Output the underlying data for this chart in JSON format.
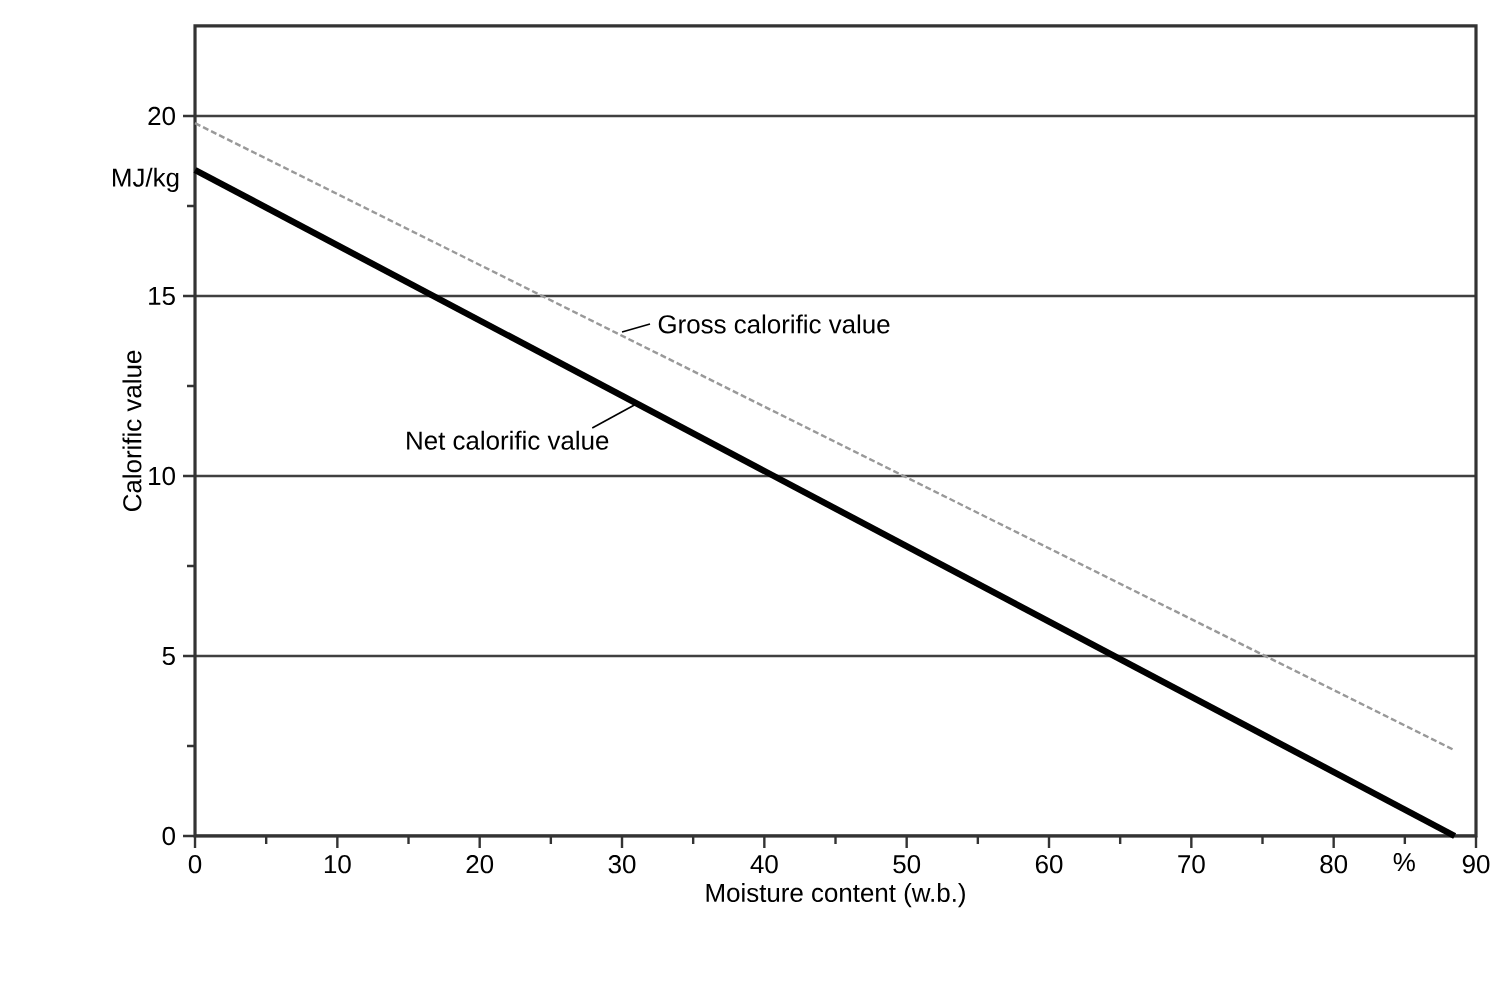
{
  "chart_data": {
    "type": "line",
    "xlabel": "Moisture content (w.b.)",
    "ylabel": "Calorific value",
    "series": [
      {
        "color": "#999999",
        "line_style": "dashed",
        "x": [
          0,
          88.4
        ],
        "values": [
          19.8,
          2.4
        ]
      },
      {
        "color": "#000000",
        "line_style": "solid",
        "x": [
          0,
          88.5
        ],
        "values": [
          18.5,
          0
        ]
      }
    ],
    "annotations": [
      {
        "text": "Gross calorific value",
        "x": 30,
        "y": 14
      },
      {
        "text": "Net calorific value",
        "x": 31,
        "y": 12
      },
      "MJ/kg",
      "%"
    ],
    "xlim": [
      0,
      90
    ],
    "ylim": [
      0,
      22.5
    ],
    "xticks": [
      0,
      10,
      20,
      30,
      40,
      50,
      60,
      70,
      80,
      90,
      {
        "value": 5,
        "label": null
      },
      {
        "value": 15,
        "label": null
      },
      {
        "value": 25,
        "label": null
      },
      {
        "value": 35,
        "label": null
      },
      {
        "value": 45,
        "label": null
      },
      {
        "value": 55,
        "label": null
      },
      {
        "value": 65,
        "label": null
      },
      {
        "value": 75,
        "label": null
      },
      {
        "value": 85,
        "label": null
      }
    ],
    "yticks": [
      0,
      5,
      10,
      15,
      20,
      {
        "value": 2.5,
        "label": null
      },
      {
        "value": 7.5,
        "label": null
      },
      {
        "value": 12.5,
        "label": null
      },
      {
        "value": 17.5,
        "label": null
      }
    ],
    "grid": "y",
    "marker": "none"
  }
}
